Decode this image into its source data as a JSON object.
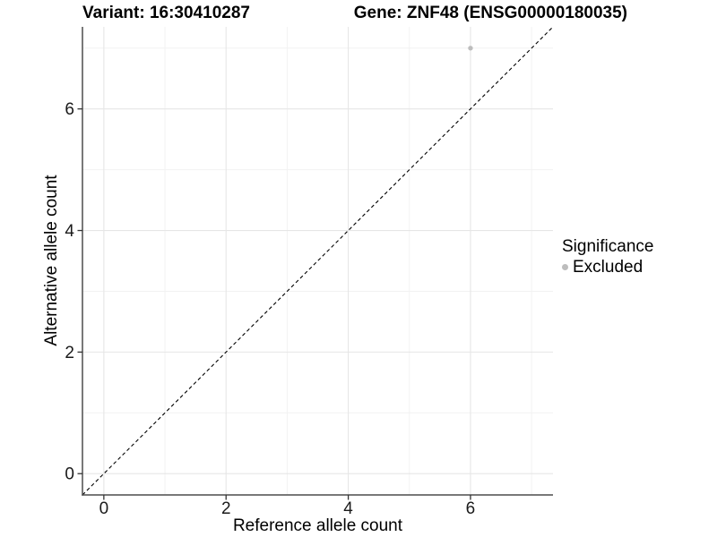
{
  "chart_data": {
    "type": "scatter",
    "titles": {
      "left": "Variant: 16:30410287",
      "right": "Gene: ZNF48 (ENSG00000180035)"
    },
    "xlabel": "Reference allele count",
    "ylabel": "Alternative allele count",
    "xlim": [
      -0.35,
      7.35
    ],
    "ylim": [
      -0.35,
      7.35
    ],
    "xticks": [
      0,
      2,
      4,
      6
    ],
    "yticks": [
      0,
      2,
      4,
      6
    ],
    "minor_xticks": [
      1,
      3,
      5,
      7
    ],
    "minor_yticks": [
      1,
      3,
      5,
      7
    ],
    "grid": true,
    "identity_line": {
      "style": "dashed",
      "color": "#000000",
      "slope": 1,
      "intercept": 0
    },
    "points": [
      {
        "x": 6,
        "y": 7,
        "significance": "Excluded",
        "color": "#bdbdbd"
      }
    ],
    "legend": {
      "title": "Significance",
      "position": "right",
      "entries": [
        {
          "label": "Excluded",
          "color": "#bdbdbd"
        }
      ]
    },
    "colors": {
      "grid_major": "#e6e6e6",
      "grid_minor": "#f2f2f2",
      "axis_line": "#4d4d4d",
      "tick_mark": "#333333",
      "tick_label": "#1a1a1a",
      "point": "#bdbdbd",
      "background": "#ffffff"
    }
  }
}
